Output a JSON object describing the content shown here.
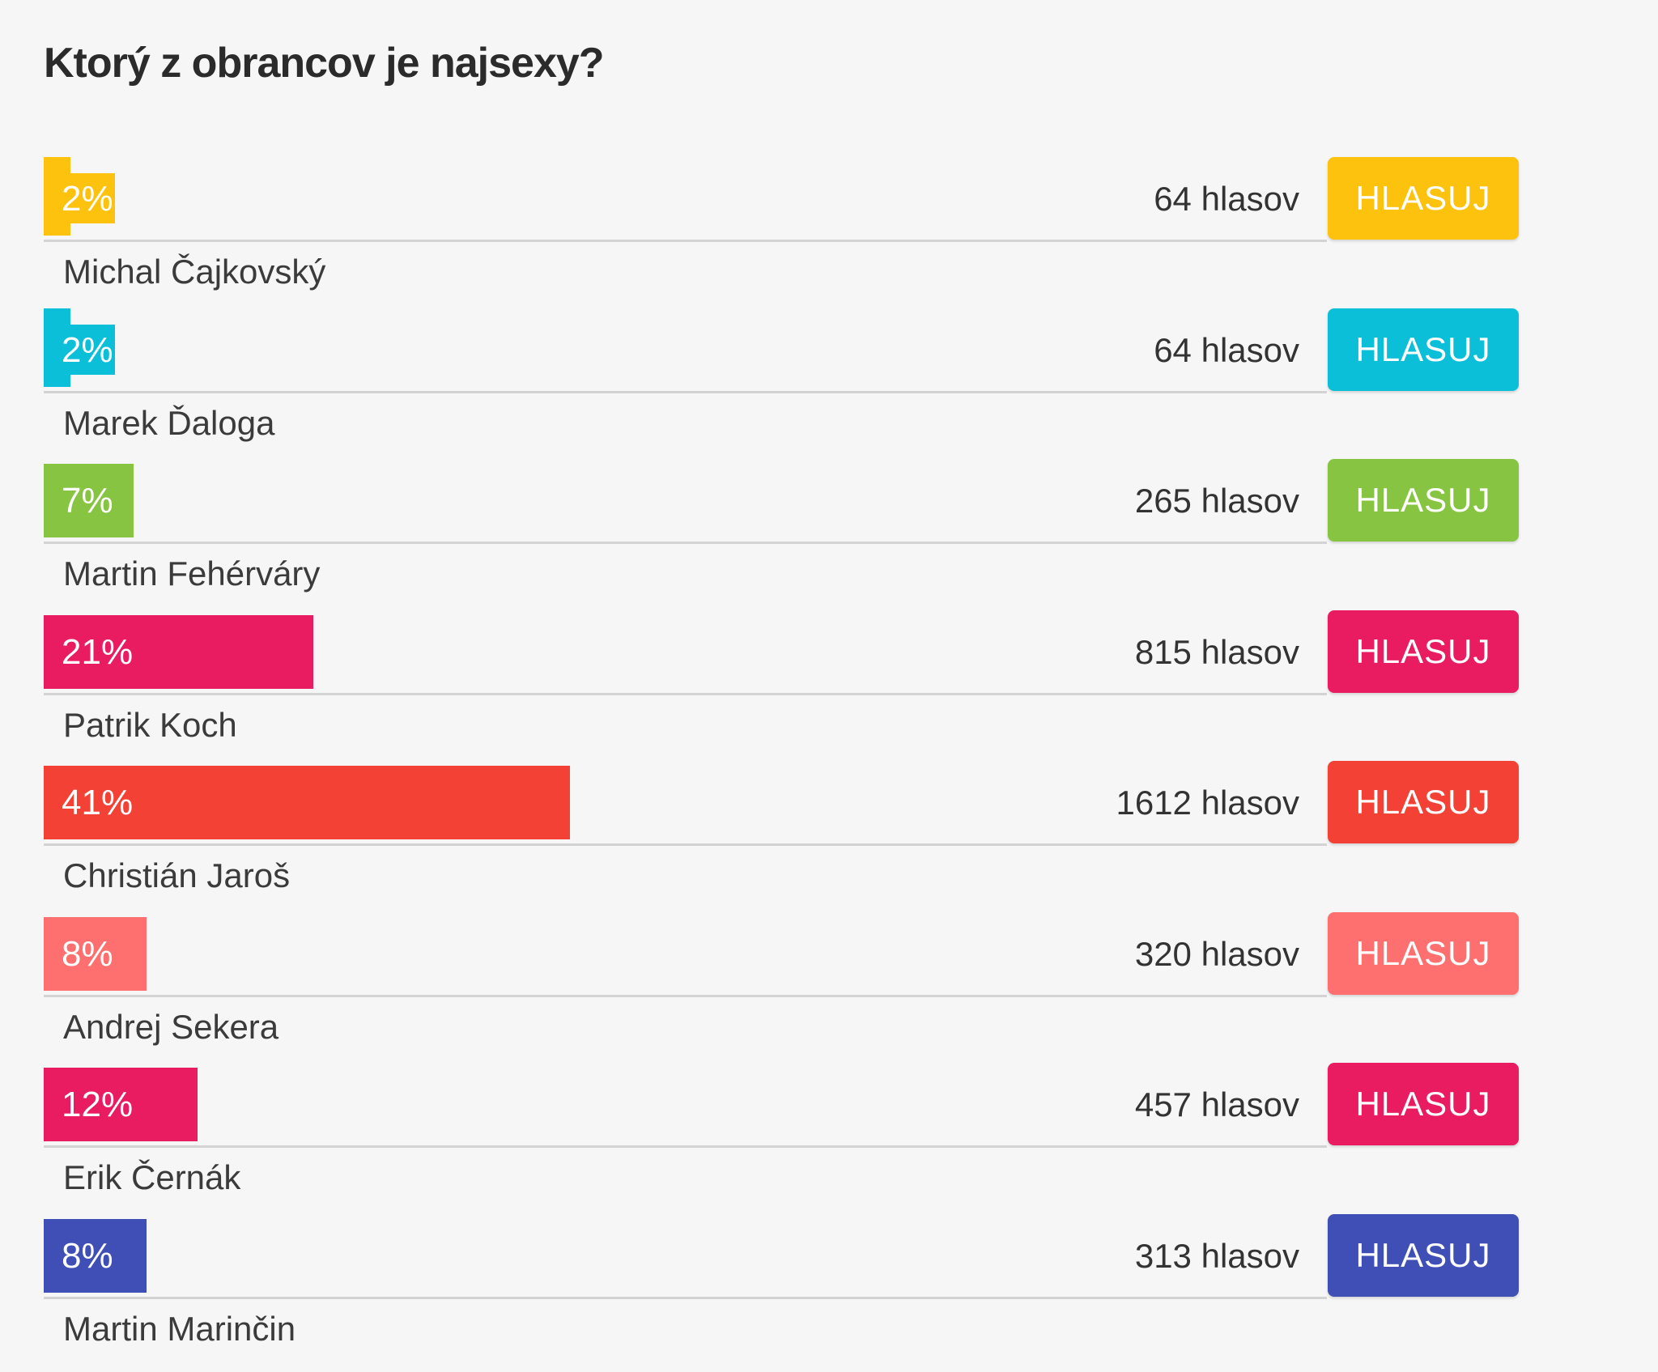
{
  "poll": {
    "title": "Ktorý z obrancov je najsexy?",
    "vote_label": "HLASUJ",
    "options": [
      {
        "name": "Michal Čajkovský",
        "percent_label": "2%",
        "percent": 2,
        "votes_label": "64 hlasov",
        "color": "#fdc20d"
      },
      {
        "name": "Marek Ďaloga",
        "percent_label": "2%",
        "percent": 2,
        "votes_label": "64 hlasov",
        "color": "#0cbfd8"
      },
      {
        "name": "Martin Fehérváry",
        "percent_label": "7%",
        "percent": 7,
        "votes_label": "265 hlasov",
        "color": "#86c441"
      },
      {
        "name": "Patrik Koch",
        "percent_label": "21%",
        "percent": 21,
        "votes_label": "815 hlasov",
        "color": "#e91c61"
      },
      {
        "name": "Christián Jaroš",
        "percent_label": "41%",
        "percent": 41,
        "votes_label": "1612 hlasov",
        "color": "#f34235"
      },
      {
        "name": "Andrej Sekera",
        "percent_label": "8%",
        "percent": 8,
        "votes_label": "320 hlasov",
        "color": "#fe7070"
      },
      {
        "name": "Erik Černák",
        "percent_label": "12%",
        "percent": 12,
        "votes_label": "457 hlasov",
        "color": "#e91c61"
      },
      {
        "name": "Martin Marinčin",
        "percent_label": "8%",
        "percent": 8,
        "votes_label": "313 hlasov",
        "color": "#3f4fb5"
      }
    ]
  }
}
